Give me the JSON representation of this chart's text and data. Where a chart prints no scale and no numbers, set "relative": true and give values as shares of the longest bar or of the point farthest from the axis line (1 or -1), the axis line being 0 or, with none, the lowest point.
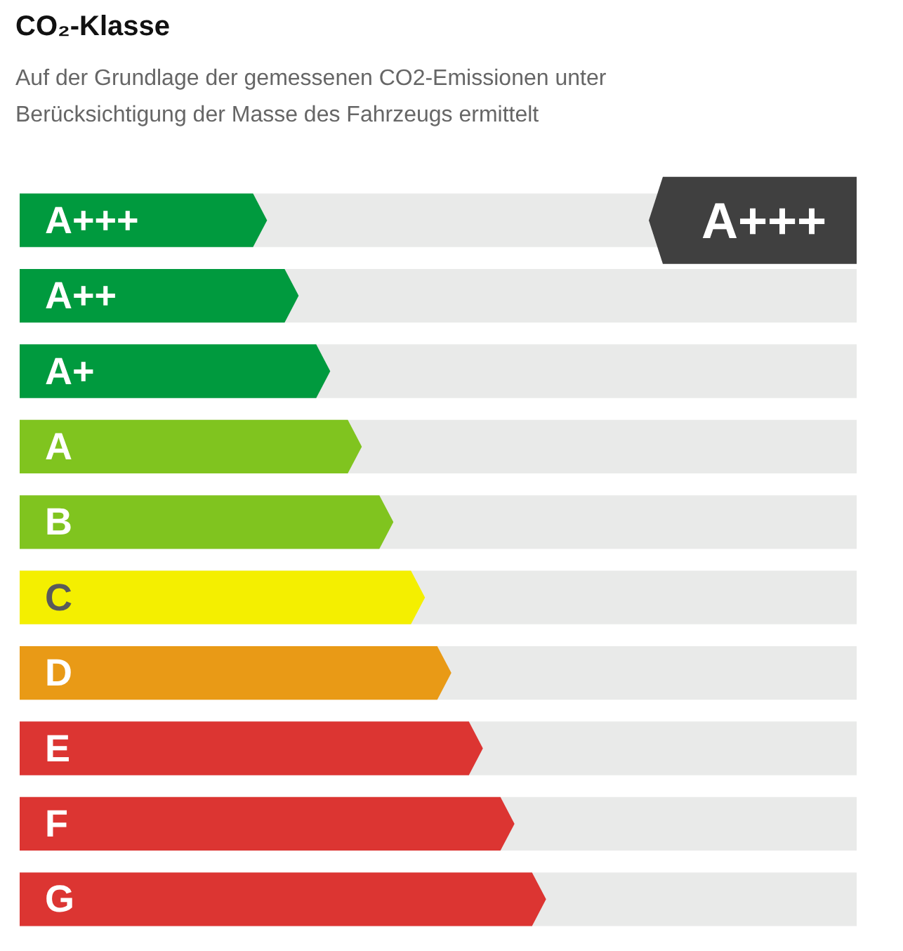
{
  "chart_data": {
    "type": "bar",
    "orientation": "horizontal",
    "relative": true,
    "title": "CO₂-Klasse",
    "subtitle": "Auf der Grundlage der gemessenen CO2-Emissionen unter Berücksichtigung der Masse des Fahrzeugs ermittelt",
    "categories": [
      "A+++",
      "A++",
      "A+",
      "A",
      "B",
      "C",
      "D",
      "E",
      "F",
      "G"
    ],
    "values": [
      0.47,
      0.53,
      0.59,
      0.65,
      0.71,
      0.77,
      0.82,
      0.88,
      0.94,
      1
    ],
    "colors": [
      "#009a3e",
      "#009a3e",
      "#009a3e",
      "#80c41f",
      "#80c41f",
      "#f4ef00",
      "#e99a16",
      "#dc3532",
      "#dc3532",
      "#dc3532"
    ],
    "annotations": [
      "A+++"
    ]
  }
}
